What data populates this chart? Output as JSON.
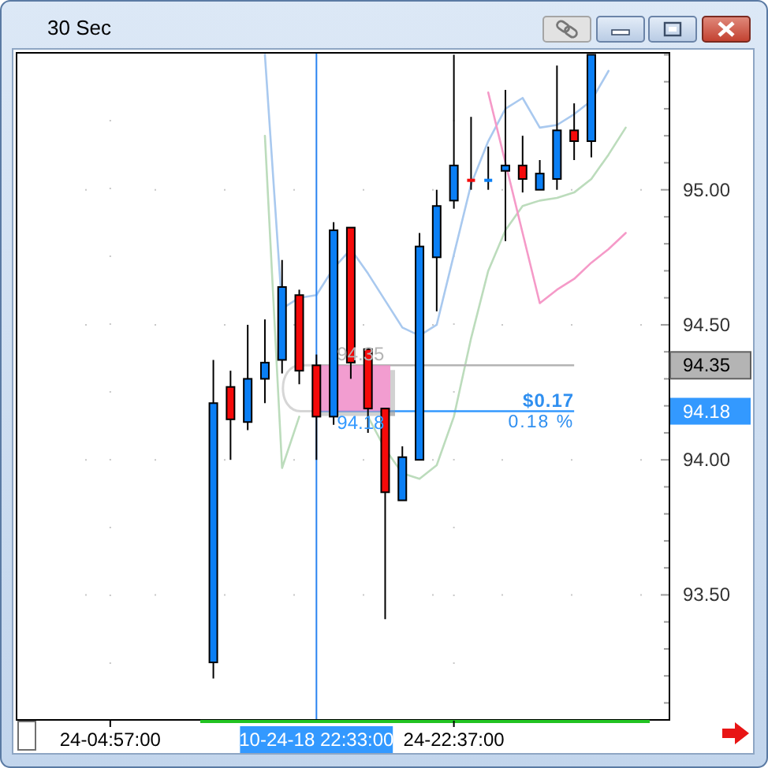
{
  "chart_data": {
    "type": "candlestick",
    "title": "30 Sec",
    "categories": [
      null,
      null,
      null,
      null,
      null,
      "24-04:57:00",
      null,
      null,
      null,
      null,
      null,
      null,
      null,
      null,
      null,
      null,
      null,
      "10-24-18 22:33:00",
      null,
      null,
      null,
      null,
      null,
      null,
      null,
      "24-22:37:00",
      null,
      null,
      null,
      null,
      null,
      null,
      null,
      null,
      null,
      null,
      null,
      null
    ],
    "ohlc": [
      null,
      null,
      null,
      null,
      null,
      null,
      null,
      null,
      null,
      null,
      null,
      [
        93.25,
        94.37,
        93.19,
        94.21
      ],
      [
        94.27,
        94.33,
        94.0,
        94.15
      ],
      [
        94.14,
        94.5,
        94.11,
        94.3
      ],
      [
        94.3,
        94.52,
        94.21,
        94.36
      ],
      [
        94.37,
        94.74,
        94.32,
        94.64
      ],
      [
        94.61,
        94.63,
        94.28,
        94.33
      ],
      [
        94.35,
        94.39,
        94.0,
        94.16
      ],
      [
        94.16,
        94.88,
        94.13,
        94.85
      ],
      [
        94.86,
        94.86,
        94.3,
        94.36
      ],
      [
        94.41,
        94.41,
        94.1,
        94.19
      ],
      [
        94.19,
        94.19,
        93.41,
        93.88
      ],
      [
        93.85,
        94.05,
        93.85,
        94.01
      ],
      [
        94.0,
        94.84,
        94.0,
        94.79
      ],
      [
        94.75,
        95.0,
        94.55,
        94.94
      ],
      [
        94.96,
        95.5,
        94.93,
        95.09
      ],
      [
        95.04,
        95.27,
        95.0,
        95.03
      ],
      [
        95.03,
        95.16,
        95.0,
        95.04
      ],
      [
        95.07,
        95.37,
        94.81,
        95.09
      ],
      [
        95.09,
        95.2,
        94.99,
        95.04
      ],
      [
        95.0,
        95.11,
        95.0,
        95.06
      ],
      [
        95.04,
        95.46,
        95.0,
        95.22
      ],
      [
        95.22,
        95.32,
        95.11,
        95.18
      ],
      [
        95.18,
        95.5,
        95.12,
        95.5
      ],
      null,
      null,
      null,
      null
    ],
    "colors": [
      null,
      null,
      null,
      null,
      null,
      null,
      null,
      null,
      null,
      null,
      null,
      "#0a7ff5",
      "#f50a0a",
      "#0a7ff5",
      "#0a7ff5",
      "#0a7ff5",
      "#f50a0a",
      "#f50a0a",
      "#0a7ff5",
      "#f50a0a",
      "#f50a0a",
      "#f50a0a",
      "#0a7ff5",
      "#0a7ff5",
      "#0a7ff5",
      "#0a7ff5",
      "#f50a0a",
      "#0a7ff5",
      "#0a7ff5",
      "#f50a0a",
      "#0a7ff5",
      "#0a7ff5",
      "#f50a0a",
      "#0a7ff5",
      null,
      null,
      null,
      null
    ],
    "series": [
      {
        "type": "line",
        "color": "#a9c9ef",
        "values": [
          null,
          null,
          null,
          null,
          null,
          null,
          null,
          null,
          null,
          null,
          null,
          null,
          null,
          null,
          95.5,
          94.56,
          94.6,
          94.61,
          94.71,
          94.78,
          94.69,
          94.59,
          94.49,
          94.46,
          94.5,
          94.76,
          95.02,
          95.18,
          95.3,
          95.34,
          95.23,
          95.24,
          95.28,
          95.33,
          95.44,
          null,
          null,
          null
        ]
      },
      {
        "type": "line",
        "color": "#bcdcbc",
        "values": [
          null,
          null,
          null,
          null,
          null,
          null,
          null,
          null,
          null,
          null,
          null,
          null,
          null,
          null,
          95.2,
          93.97,
          94.16,
          null,
          null,
          null,
          94.16,
          94.04,
          93.95,
          93.93,
          93.98,
          94.16,
          94.45,
          94.7,
          94.85,
          94.94,
          94.96,
          94.97,
          94.99,
          95.04,
          95.13,
          95.23,
          null,
          null
        ]
      },
      {
        "type": "line",
        "color": "#f59ac8",
        "values": [
          null,
          null,
          null,
          null,
          null,
          null,
          null,
          null,
          null,
          null,
          null,
          null,
          null,
          null,
          null,
          null,
          null,
          null,
          null,
          null,
          null,
          null,
          null,
          null,
          null,
          null,
          null,
          95.36,
          95.1,
          94.84,
          94.58,
          94.63,
          94.67,
          94.73,
          94.78,
          94.84,
          null,
          null
        ]
      }
    ],
    "ylim": [
      93.04,
      95.51
    ],
    "yticks": [
      {
        "value": 93.1,
        "label": null
      },
      {
        "value": 93.2,
        "label": null
      },
      {
        "value": 93.3,
        "label": null
      },
      {
        "value": 93.4,
        "label": null
      },
      {
        "value": 93.5,
        "label": "93.50"
      },
      {
        "value": 93.6,
        "label": null
      },
      {
        "value": 93.7,
        "label": null
      },
      {
        "value": 93.8,
        "label": null
      },
      {
        "value": 93.9,
        "label": null
      },
      {
        "value": 94.0,
        "label": "94.00"
      },
      {
        "value": 94.1,
        "label": null
      },
      {
        "value": 94.2,
        "label": null
      },
      {
        "value": 94.3,
        "label": null
      },
      {
        "value": 94.4,
        "label": null
      },
      {
        "value": 94.5,
        "label": "94.50"
      },
      {
        "value": 94.6,
        "label": null
      },
      {
        "value": 94.7,
        "label": null
      },
      {
        "value": 94.8,
        "label": null
      },
      {
        "value": 94.9,
        "label": null
      },
      {
        "value": 95.0,
        "label": "95.00"
      },
      {
        "value": 95.1,
        "label": null
      },
      {
        "value": 95.2,
        "label": null
      },
      {
        "value": 95.3,
        "label": null
      },
      {
        "value": 95.4,
        "label": null
      },
      {
        "value": 95.5,
        "label": null
      }
    ],
    "grid": true,
    "ref_lines": [
      {
        "axis": "y",
        "value": 94.35,
        "label": "94.35",
        "color": "#b4b4b4"
      },
      {
        "axis": "y",
        "value": 94.18,
        "label": "94.18",
        "color": "#3399ff"
      },
      {
        "axis": "x",
        "value": "10-24-18 22:33:00",
        "color": "#2a84f0"
      }
    ],
    "bands": [
      {
        "axis": "y",
        "from": 94.18,
        "to": 94.35,
        "color": "#f08cc8"
      }
    ],
    "annotations": [
      {
        "text": "$0.17",
        "y": 94.18
      },
      {
        "text": "0.18 %",
        "y": 94.18
      }
    ]
  }
}
